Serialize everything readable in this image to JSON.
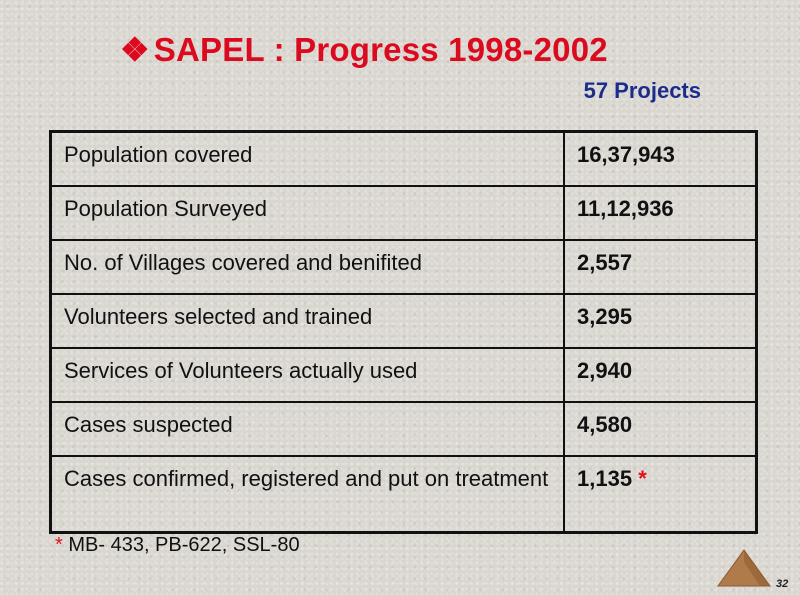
{
  "slide": {
    "bullet": "❖",
    "title": "SAPEL : Progress 1998-2002",
    "subtitle": "57 Projects"
  },
  "table": {
    "rows": [
      {
        "label": "Population covered",
        "value": "16,37,943"
      },
      {
        "label": "Population Surveyed",
        "value": "11,12,936"
      },
      {
        "label": "No. of Villages covered and benifited",
        "value": "2,557"
      },
      {
        "label": "Volunteers selected and trained",
        "value": "3,295"
      },
      {
        "label": "Services of Volunteers actually used",
        "value": "2,940"
      },
      {
        "label": "Cases suspected",
        "value": "4,580"
      },
      {
        "label": "Cases confirmed, registered and put on treatment",
        "value": "1,135",
        "marker": "*"
      }
    ]
  },
  "footnote": {
    "marker": "*",
    "text": "MB- 433, PB-622, SSL-80"
  },
  "page_number": "32",
  "colors": {
    "title": "#dc0a1e",
    "subtitle": "#1c2c8c",
    "nav_triangle": "#b07a4a"
  },
  "icons": {
    "nav": "triangle-up-icon"
  }
}
